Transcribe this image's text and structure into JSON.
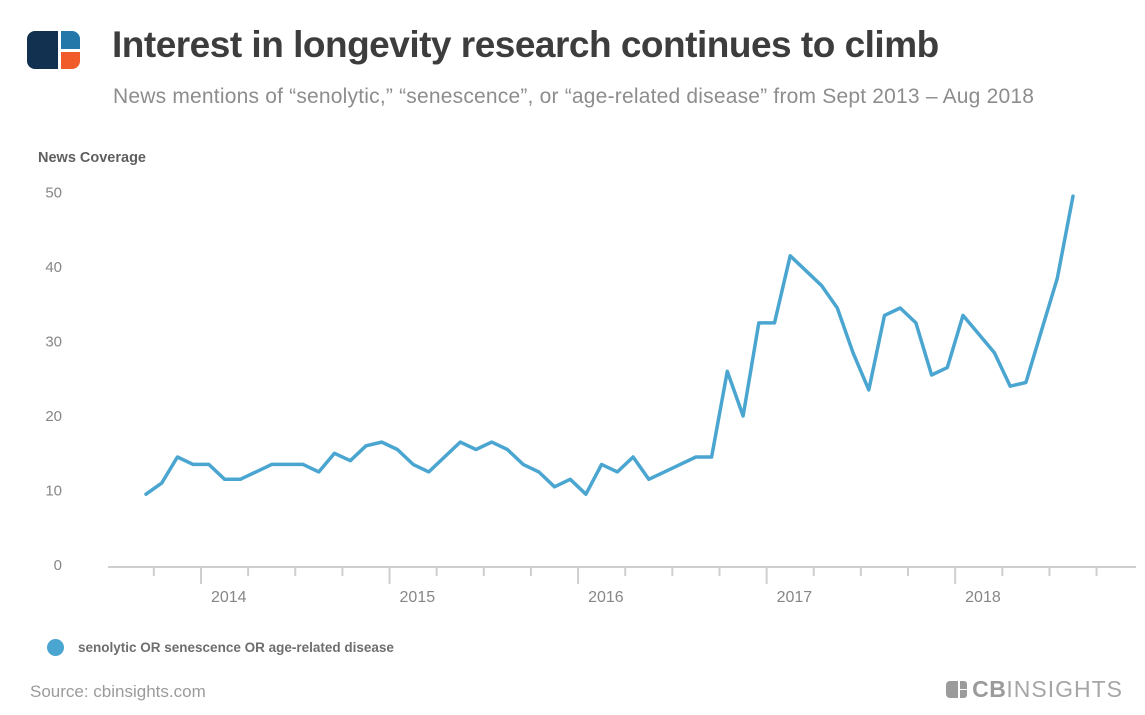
{
  "header": {
    "title": "Interest in longevity research continues to climb",
    "subtitle": "News mentions of “senolytic,” “senescence”, or “age-related disease” from Sept 2013 – Aug 2018"
  },
  "chart_data": {
    "type": "line",
    "title": "News Coverage",
    "xlabel": "",
    "ylabel": "News Coverage",
    "ylim": [
      0,
      50
    ],
    "yticks": [
      0,
      10,
      20,
      30,
      40,
      50
    ],
    "grid": false,
    "legend_position": "bottom-left",
    "year_labels": [
      "2014",
      "2015",
      "2016",
      "2017",
      "2018"
    ],
    "x_labels": [
      "2013-09",
      "2013-10",
      "2013-11",
      "2013-12",
      "2014-01",
      "2014-02",
      "2014-03",
      "2014-04",
      "2014-05",
      "2014-06",
      "2014-07",
      "2014-08",
      "2014-09",
      "2014-10",
      "2014-11",
      "2014-12",
      "2015-01",
      "2015-02",
      "2015-03",
      "2015-04",
      "2015-05",
      "2015-06",
      "2015-07",
      "2015-08",
      "2015-09",
      "2015-10",
      "2015-11",
      "2015-12",
      "2016-01",
      "2016-02",
      "2016-03",
      "2016-04",
      "2016-05",
      "2016-06",
      "2016-07",
      "2016-08",
      "2016-09",
      "2016-10",
      "2016-11",
      "2016-12",
      "2017-01",
      "2017-02",
      "2017-03",
      "2017-04",
      "2017-05",
      "2017-06",
      "2017-07",
      "2017-08",
      "2017-09",
      "2017-10",
      "2017-11",
      "2017-12",
      "2018-01",
      "2018-02",
      "2018-03",
      "2018-04",
      "2018-05",
      "2018-06",
      "2018-07",
      "2018-08"
    ],
    "series": [
      {
        "name": "senolytic OR senescence OR age-related disease",
        "color": "#4AA6D0",
        "values": [
          9.5,
          11,
          14.5,
          13.5,
          13.5,
          11.5,
          11.5,
          12.5,
          13.5,
          13.5,
          13.5,
          12.5,
          15,
          14,
          16,
          16.5,
          15.5,
          13.5,
          12.5,
          14.5,
          16.5,
          15.5,
          16.5,
          15.5,
          13.5,
          12.5,
          10.5,
          11.5,
          9.5,
          13.5,
          12.5,
          14.5,
          11.5,
          12.5,
          13.5,
          14.5,
          14.5,
          26,
          20,
          32.5,
          32.5,
          41.5,
          39.5,
          37.5,
          34.5,
          28.5,
          23.5,
          33.5,
          34.5,
          32.5,
          25.5,
          26.5,
          33.5,
          31,
          28.5,
          24,
          24.5,
          31.5,
          38.5,
          49.5
        ]
      }
    ]
  },
  "legend": {
    "label": "senolytic OR senescence OR age-related disease"
  },
  "footer": {
    "source": "Source: cbinsights.com",
    "brand_bold": "CB",
    "brand_light": "INSIGHTS"
  }
}
